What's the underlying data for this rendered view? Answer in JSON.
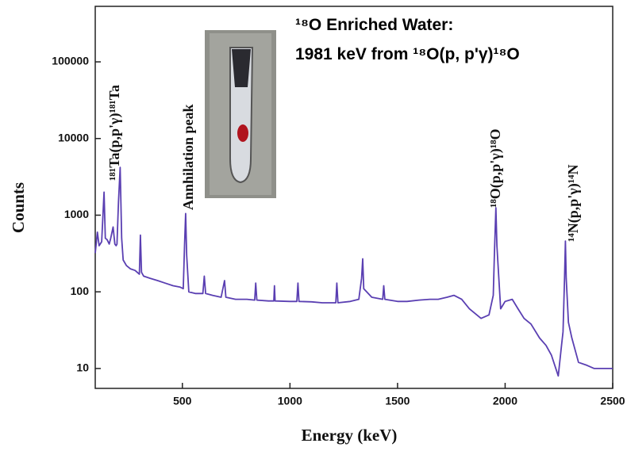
{
  "chart_data": {
    "type": "line",
    "title_lines": [
      "¹⁸O Enriched Water:",
      "1981 keV from ¹⁸O(p, p'γ)¹⁸O"
    ],
    "x_label": "Energy (keV)",
    "y_label": "Counts",
    "annotations": [
      "¹⁸¹Ta(p,p'γ)¹⁸¹Ta",
      "Annhilation peak",
      "¹⁸O(p,p'γ)¹⁸O",
      "¹⁴N(p,p'γ)¹⁴N"
    ],
    "log_scale": true,
    "xlim": [
      95,
      2500
    ],
    "ylim": [
      5.5,
      530000
    ],
    "xticks": [
      500,
      1000,
      1500,
      2000,
      2500
    ],
    "yticks": [
      10,
      100,
      1000,
      10000,
      100000
    ],
    "series": [
      {
        "color": "#5a3fb2",
        "x": [
          95,
          105,
          113,
          125,
          136,
          142,
          150,
          160,
          167,
          178,
          186,
          192,
          196,
          203,
          211,
          218,
          225,
          240,
          258,
          280,
          300,
          305,
          310,
          320,
          350,
          385,
          420,
          457,
          490,
          504,
          510,
          515,
          520,
          530,
          560,
          595,
          602,
          608,
          640,
          680,
          696,
          702,
          747,
          800,
          836,
          841,
          846,
          900,
          925,
          928,
          931,
          1000,
          1032,
          1037,
          1042,
          1100,
          1150,
          1213,
          1218,
          1223,
          1280,
          1320,
          1333,
          1338,
          1343,
          1380,
          1431,
          1436,
          1441,
          1500,
          1544,
          1600,
          1650,
          1689,
          1730,
          1762,
          1798,
          1834,
          1888,
          1925,
          1945,
          1950,
          1957,
          1962,
          1968,
          1979,
          2000,
          2033,
          2060,
          2088,
          2120,
          2160,
          2190,
          2215,
          2247,
          2262,
          2269,
          2276,
          2280,
          2284,
          2294,
          2310,
          2341,
          2380,
          2414,
          2457,
          2500
        ],
        "values": [
          320,
          600,
          400,
          450,
          2000,
          500,
          480,
          420,
          500,
          700,
          420,
          400,
          420,
          1500,
          4200,
          500,
          260,
          220,
          200,
          190,
          170,
          550,
          180,
          160,
          150,
          140,
          130,
          120,
          115,
          110,
          400,
          1050,
          300,
          100,
          95,
          95,
          160,
          95,
          90,
          85,
          140,
          85,
          80,
          80,
          78,
          130,
          78,
          76,
          76,
          120,
          76,
          75,
          75,
          130,
          75,
          74,
          72,
          72,
          130,
          72,
          75,
          80,
          150,
          270,
          110,
          85,
          80,
          120,
          80,
          75,
          75,
          78,
          80,
          80,
          85,
          90,
          80,
          60,
          45,
          50,
          90,
          300,
          1250,
          400,
          200,
          60,
          75,
          80,
          60,
          45,
          38,
          25,
          20,
          15,
          8,
          20,
          30,
          150,
          460,
          150,
          40,
          25,
          12,
          11,
          10,
          10,
          10
        ]
      }
    ]
  }
}
